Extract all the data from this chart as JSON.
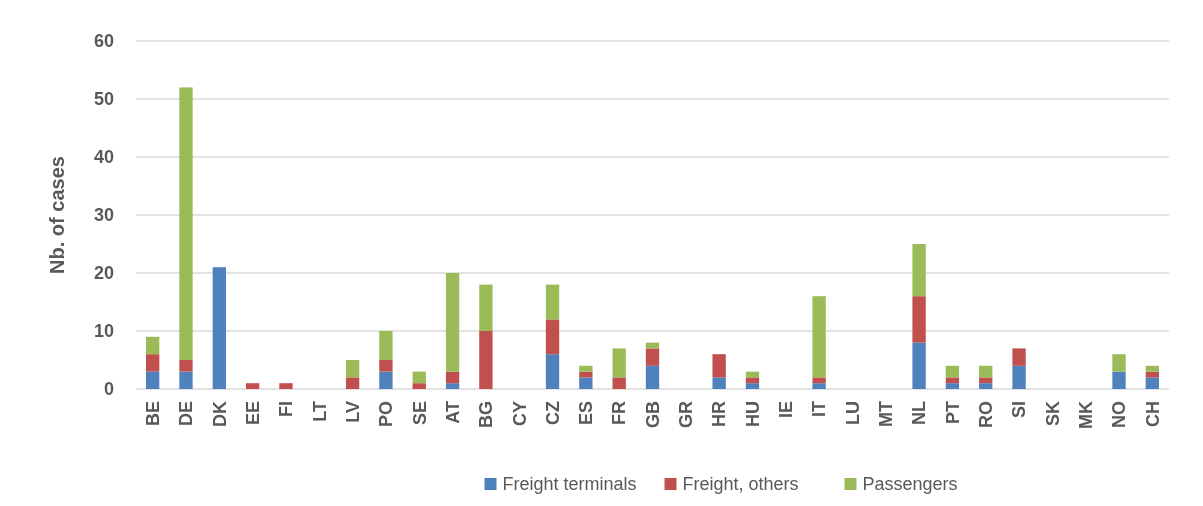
{
  "chart_data": {
    "type": "bar",
    "stacked": true,
    "ylabel": "Nb. of cases",
    "categories": [
      "BE",
      "DE",
      "DK",
      "EE",
      "FI",
      "LT",
      "LV",
      "PO",
      "SE",
      "AT",
      "BG",
      "CY",
      "CZ",
      "ES",
      "FR",
      "GB",
      "GR",
      "HR",
      "HU",
      "IE",
      "IT",
      "LU",
      "MT",
      "NL",
      "PT",
      "RO",
      "SI",
      "SK",
      "MK",
      "NO",
      "CH"
    ],
    "series": [
      {
        "name": "Freight terminals",
        "color": "#4f81bd",
        "values": [
          3,
          3,
          21,
          0,
          0,
          0,
          0,
          3,
          0,
          1,
          0,
          0,
          6,
          2,
          0,
          4,
          0,
          2,
          1,
          0,
          1,
          0,
          0,
          8,
          1,
          1,
          4,
          0,
          0,
          3,
          2
        ]
      },
      {
        "name": "Freight, others",
        "color": "#c0504d",
        "values": [
          3,
          2,
          0,
          1,
          1,
          0,
          2,
          2,
          1,
          2,
          10,
          0,
          6,
          1,
          2,
          3,
          0,
          4,
          1,
          0,
          1,
          0,
          0,
          8,
          1,
          1,
          3,
          0,
          0,
          0,
          1
        ]
      },
      {
        "name": "Passengers",
        "color": "#9bbb59",
        "values": [
          3,
          47,
          0,
          0,
          0,
          0,
          3,
          5,
          2,
          17,
          8,
          0,
          6,
          1,
          5,
          1,
          0,
          0,
          1,
          0,
          14,
          0,
          0,
          9,
          2,
          2,
          0,
          0,
          0,
          3,
          1
        ]
      }
    ],
    "ylim": [
      0,
      60
    ],
    "yticks": [
      0,
      10,
      20,
      30,
      40,
      50,
      60
    ],
    "grid": "y",
    "legend": "bottom"
  }
}
